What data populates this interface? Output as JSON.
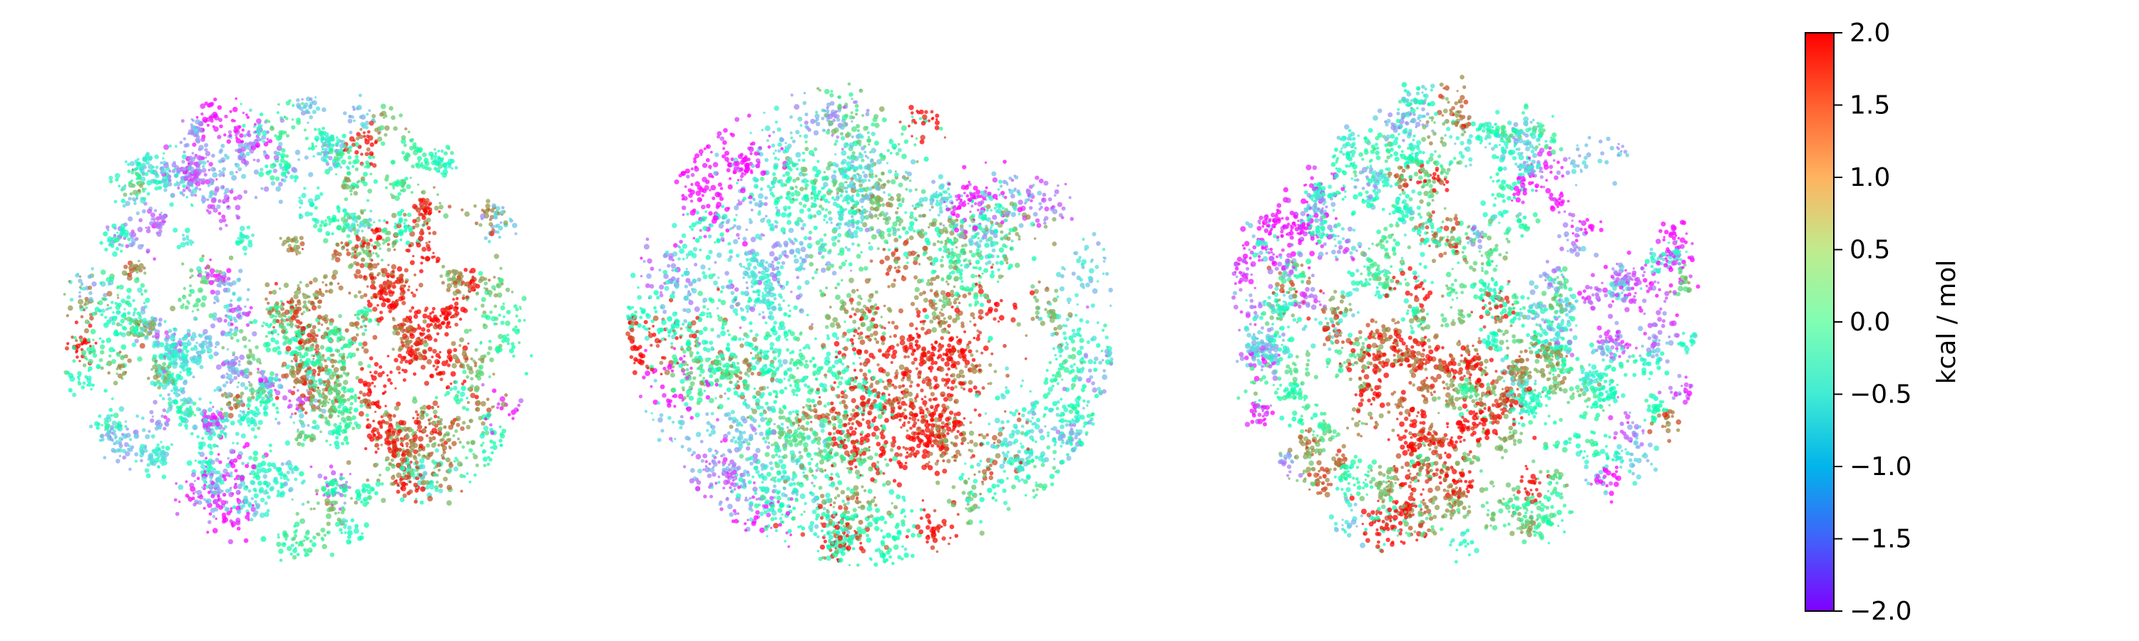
{
  "chart_data": {
    "type": "scatter",
    "panels": [
      {
        "name": "",
        "point_count": 5200,
        "axes_visible": false
      },
      {
        "name": "",
        "point_count": 5200,
        "axes_visible": false
      },
      {
        "name": "",
        "point_count": 5200,
        "axes_visible": false
      }
    ],
    "colorbar": {
      "label": "kcal / mol",
      "vmin": -2.0,
      "vmax": 2.0,
      "colormap": "rainbow",
      "ticks": [
        2.0,
        1.5,
        1.0,
        0.5,
        0.0,
        -0.5,
        -1.0,
        -1.5,
        -2.0
      ],
      "tick_labels": [
        "2.0",
        "1.5",
        "1.0",
        "0.5",
        "0.0",
        "−0.5",
        "−1.0",
        "−1.5",
        "−2.0"
      ],
      "position": "right"
    },
    "colors": {
      "min": "#7f00ff",
      "mid": "#80ffb4",
      "max": "#ff0000"
    },
    "title": "",
    "xlabel": "",
    "ylabel": "",
    "grid": false,
    "legend": "none"
  }
}
